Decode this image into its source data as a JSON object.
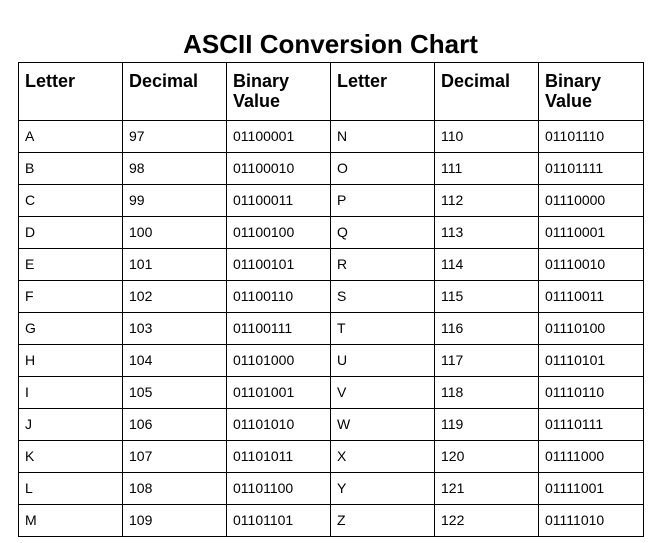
{
  "title": "ASCII Conversion Chart",
  "headers": [
    "Letter",
    "Decimal",
    "Binary Value",
    "Letter",
    "Decimal",
    "Binary Value"
  ],
  "rows": [
    [
      "A",
      "97",
      "01100001",
      "N",
      "110",
      "01101110"
    ],
    [
      "B",
      "98",
      "01100010",
      "O",
      "111",
      "01101111"
    ],
    [
      "C",
      "99",
      "01100011",
      "P",
      "112",
      "01110000"
    ],
    [
      "D",
      "100",
      "01100100",
      "Q",
      "113",
      "01110001"
    ],
    [
      "E",
      "101",
      "01100101",
      "R",
      "114",
      "01110010"
    ],
    [
      "F",
      "102",
      "01100110",
      "S",
      "115",
      "01110011"
    ],
    [
      "G",
      "103",
      "01100111",
      "T",
      "116",
      "01110100"
    ],
    [
      "H",
      "104",
      "01101000",
      "U",
      "117",
      "01110101"
    ],
    [
      "I",
      "105",
      "01101001",
      "V",
      "118",
      "01110110"
    ],
    [
      "J",
      "106",
      "01101010",
      "W",
      "119",
      "01110111"
    ],
    [
      "K",
      "107",
      "01101011",
      "X",
      "120",
      "01111000"
    ],
    [
      "L",
      "108",
      "01101100",
      "Y",
      "121",
      "01111001"
    ],
    [
      "M",
      "109",
      "01101101",
      "Z",
      "122",
      "01111010"
    ]
  ]
}
